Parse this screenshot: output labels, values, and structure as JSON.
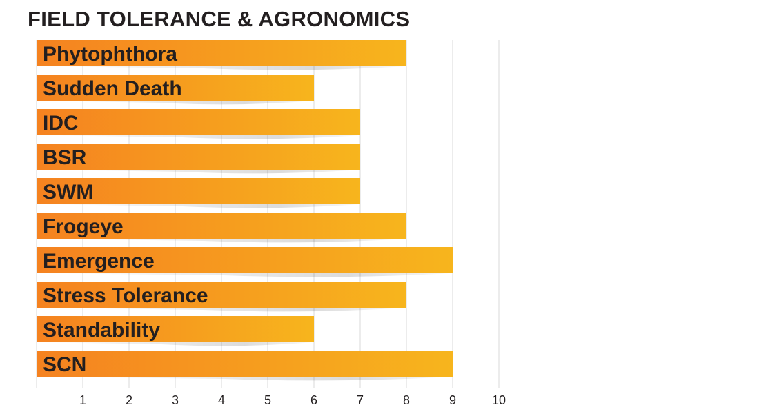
{
  "chart_data": {
    "type": "bar",
    "orientation": "horizontal",
    "title": "FIELD TOLERANCE & AGRONOMICS",
    "xlabel": "",
    "ylabel": "",
    "categories": [
      "Phytophthora",
      "Sudden Death",
      "IDC",
      "BSR",
      "SWM",
      "Frogeye",
      "Emergence",
      "Stress Tolerance",
      "Standability",
      "SCN"
    ],
    "values": [
      8,
      6,
      7,
      7,
      7,
      8,
      9,
      8,
      6,
      9
    ],
    "xlim": [
      0,
      10
    ],
    "x_ticks": [
      1,
      2,
      3,
      4,
      5,
      6,
      7,
      8,
      9,
      10
    ],
    "grid": "vertical",
    "legend": "none",
    "colors": {
      "bar_start": "#f58220",
      "bar_end": "#f7b51d",
      "grid": "#d9d9d9",
      "text": "#231f20"
    }
  }
}
